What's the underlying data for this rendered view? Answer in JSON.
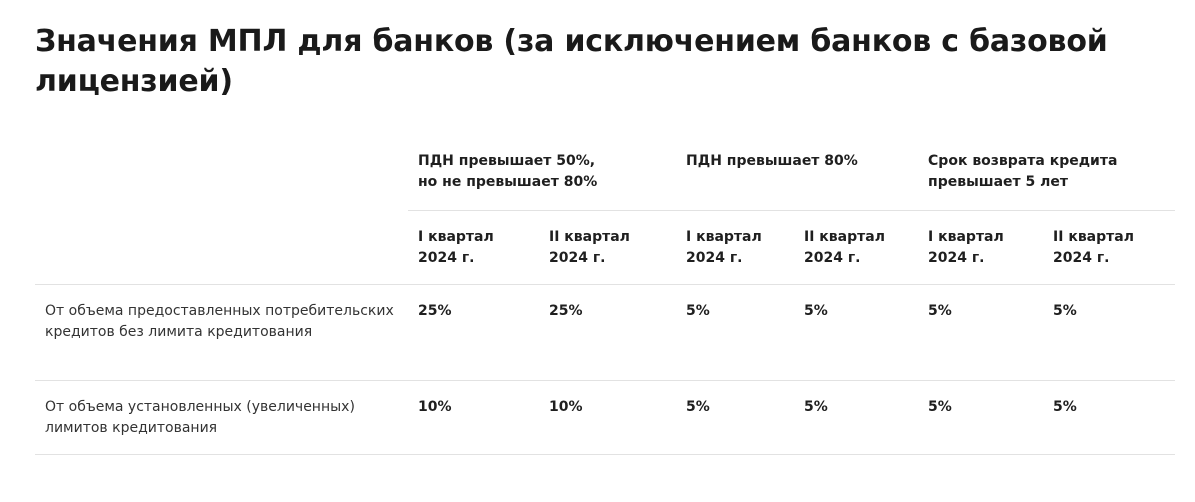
{
  "title": "Значения МПЛ для банков (за исключением банков с базовой лицензией)",
  "groups": [
    "ПДН превышает 50%,\nно не превышает 80%",
    "ПДН превышает 80%",
    "Срок возврата кредита\nпревышает 5 лет"
  ],
  "quarters": [
    "I квартал\n2024 г.",
    "II квартал\n2024 г.",
    "I квартал\n2024 г.",
    "II квартал\n2024 г.",
    "I квартал\n2024 г.",
    "II квартал\n2024 г."
  ],
  "rows": [
    {
      "label": "От объема предоставленных потребительских кредитов без лимита кредитования",
      "values": [
        "25%",
        "25%",
        "5%",
        "5%",
        "5%",
        "5%"
      ]
    },
    {
      "label": "От объема установленных (увеличенных) лимитов кредитования",
      "values": [
        "10%",
        "10%",
        "5%",
        "5%",
        "5%",
        "5%"
      ]
    }
  ]
}
